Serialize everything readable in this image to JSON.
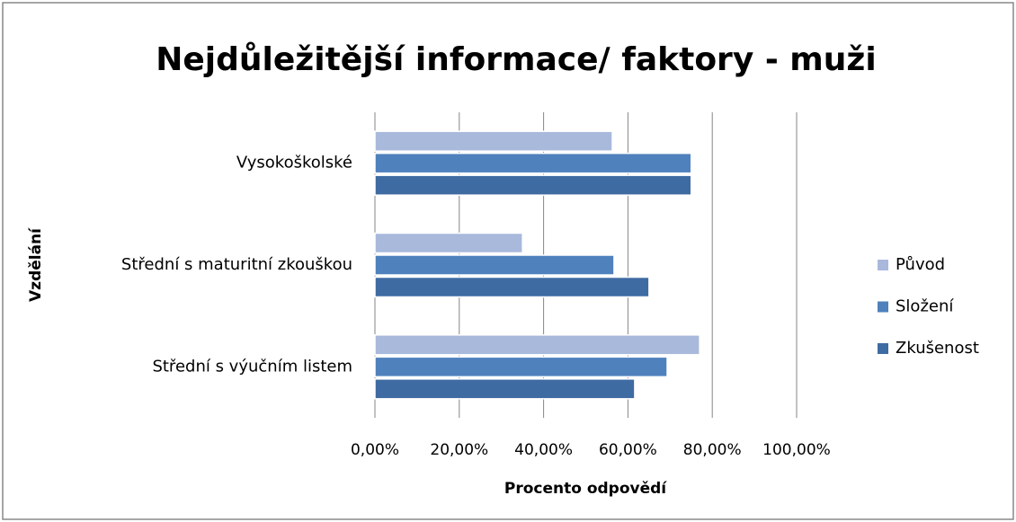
{
  "chart_data": {
    "type": "hbar",
    "title": "Nejdůležitější informace/ faktory - muži",
    "x_label": "Procento odpovědí",
    "y_label": "Vzdělání",
    "categories": [
      "Vysokoškolské",
      "Střední s maturitní zkouškou",
      "Střední s výučním listem"
    ],
    "series": [
      {
        "name": "Původ",
        "color": "#a9b9dc",
        "values": [
          56.3,
          35,
          77
        ]
      },
      {
        "name": "Složení",
        "color": "#4f81bd",
        "values": [
          75,
          56.7,
          69.3
        ]
      },
      {
        "name": "Zkušenost",
        "color": "#3f6ba3",
        "values": [
          75,
          65,
          61.6
        ]
      }
    ],
    "xlim": [
      0,
      100
    ],
    "xticks": [
      {
        "value": 0,
        "label": "0,00%"
      },
      {
        "value": 20,
        "label": "20,00%"
      },
      {
        "value": 40,
        "label": "40,00%"
      },
      {
        "value": 60,
        "label": "60,00%"
      },
      {
        "value": 80,
        "label": "80,00%"
      },
      {
        "value": 100,
        "label": "100,00%"
      }
    ],
    "grid": true,
    "legend": "right"
  }
}
